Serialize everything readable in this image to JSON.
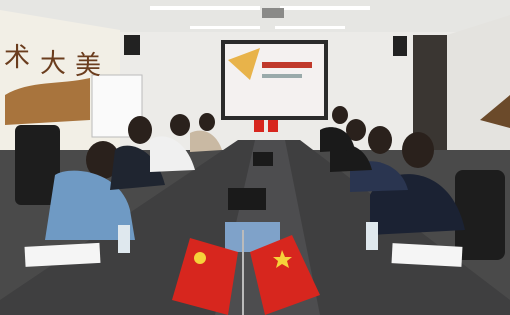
{
  "wall_text": [
    "术",
    "大",
    "美"
  ]
}
